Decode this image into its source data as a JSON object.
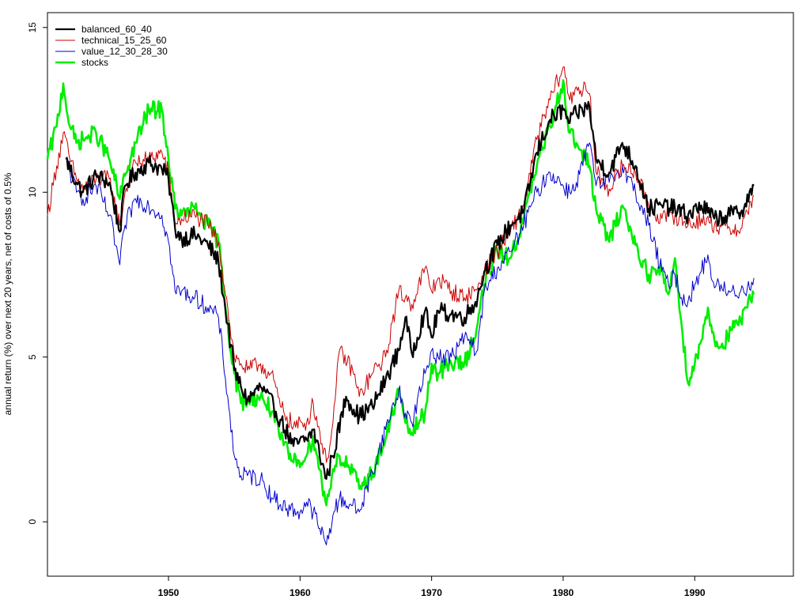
{
  "chart_data": {
    "type": "line",
    "title": "",
    "xlabel": "",
    "ylabel": "annual return (%) over next 20 years, net of costs of 0.5%",
    "xlim": [
      1940.8,
      1997.5
    ],
    "ylim": [
      -1.65,
      15.45
    ],
    "x_ticks": [
      1950,
      1960,
      1970,
      1980,
      1990
    ],
    "y_ticks": [
      0,
      5,
      10,
      15
    ],
    "grid": false,
    "legend_position": "top-left",
    "series": [
      {
        "name": "balanced_60_40",
        "color": "#000000",
        "x": [
          1942.2,
          1943.0,
          1943.5,
          1944.5,
          1945.5,
          1946.3,
          1946.7,
          1947.5,
          1948.5,
          1949.5,
          1950.0,
          1950.5,
          1951.0,
          1952.0,
          1953.0,
          1953.8,
          1954.5,
          1955.0,
          1955.5,
          1956.0,
          1957.0,
          1958.0,
          1958.5,
          1959.5,
          1960.5,
          1961.0,
          1962.0,
          1962.5,
          1963.5,
          1964.5,
          1965.5,
          1966.5,
          1967.5,
          1968.0,
          1968.5,
          1969.5,
          1970.0,
          1970.5,
          1971.5,
          1972.5,
          1973.5,
          1974.0,
          1975.0,
          1976.0,
          1977.0,
          1978.0,
          1979.0,
          1980.0,
          1980.5,
          1981.0,
          1982.0,
          1982.5,
          1983.5,
          1984.5,
          1985.5,
          1986.5,
          1987.5,
          1988.5,
          1989.5,
          1990.5,
          1991.5,
          1992.5,
          1993.5,
          1994.5
        ],
        "y": [
          11.0,
          10.3,
          10.0,
          10.5,
          10.3,
          8.8,
          10.2,
          10.6,
          10.9,
          10.7,
          10.4,
          8.9,
          8.6,
          8.7,
          8.4,
          7.9,
          6.0,
          4.6,
          4.1,
          3.7,
          4.1,
          3.5,
          3.1,
          2.3,
          2.5,
          2.8,
          1.3,
          2.0,
          3.8,
          3.2,
          3.5,
          4.3,
          5.2,
          6.2,
          5.1,
          6.4,
          5.6,
          6.4,
          6.3,
          6.2,
          6.8,
          7.6,
          8.4,
          9.0,
          9.4,
          11.2,
          12.2,
          12.5,
          12.1,
          12.4,
          12.6,
          11.0,
          10.6,
          11.5,
          10.8,
          9.5,
          9.6,
          9.5,
          9.3,
          9.6,
          9.2,
          9.3,
          9.4,
          10.2
        ]
      },
      {
        "name": "technical_15_25_60",
        "color": "#cc0000",
        "x": [
          1940.8,
          1941.5,
          1942.0,
          1942.5,
          1943.0,
          1943.5,
          1944.5,
          1945.5,
          1946.3,
          1946.7,
          1947.5,
          1948.5,
          1949.5,
          1950.0,
          1950.5,
          1951.0,
          1952.0,
          1953.0,
          1953.8,
          1954.5,
          1955.0,
          1955.5,
          1956.0,
          1957.0,
          1958.0,
          1958.5,
          1959.5,
          1960.5,
          1961.0,
          1962.0,
          1962.5,
          1963.0,
          1964.0,
          1964.5,
          1965.5,
          1966.5,
          1967.5,
          1968.0,
          1968.5,
          1969.5,
          1970.0,
          1970.5,
          1971.5,
          1972.5,
          1973.5,
          1974.0,
          1975.0,
          1976.0,
          1977.0,
          1978.0,
          1979.0,
          1980.0,
          1980.5,
          1981.0,
          1982.0,
          1982.5,
          1983.5,
          1984.5,
          1985.5,
          1986.5,
          1987.5,
          1988.5,
          1989.5,
          1990.5,
          1991.5,
          1992.5,
          1993.5,
          1994.5
        ],
        "y": [
          9.3,
          10.8,
          11.8,
          11.0,
          10.4,
          10.1,
          10.4,
          10.4,
          9.0,
          10.0,
          10.9,
          11.0,
          11.2,
          10.6,
          9.0,
          9.2,
          9.3,
          9.0,
          8.5,
          6.5,
          5.0,
          4.8,
          4.6,
          4.8,
          4.3,
          3.5,
          2.9,
          3.0,
          3.6,
          1.8,
          3.0,
          5.2,
          4.6,
          3.8,
          4.5,
          5.0,
          7.0,
          6.8,
          6.6,
          7.7,
          7.0,
          7.4,
          7.0,
          6.8,
          7.1,
          7.6,
          8.2,
          8.8,
          9.6,
          11.6,
          12.8,
          13.8,
          12.8,
          13.2,
          13.0,
          10.6,
          10.1,
          10.8,
          10.6,
          9.6,
          9.2,
          9.3,
          9.0,
          9.2,
          9.0,
          8.9,
          8.9,
          9.9
        ]
      },
      {
        "name": "value_12_30_28_30",
        "color": "#0000cc",
        "x": [
          1942.2,
          1943.0,
          1943.5,
          1944.5,
          1945.5,
          1946.3,
          1946.7,
          1947.5,
          1948.5,
          1949.5,
          1950.0,
          1950.5,
          1951.0,
          1952.0,
          1953.0,
          1953.8,
          1954.5,
          1955.0,
          1955.5,
          1956.0,
          1957.0,
          1958.0,
          1959.0,
          1960.0,
          1960.5,
          1961.0,
          1961.5,
          1962.0,
          1962.5,
          1963.0,
          1964.0,
          1964.5,
          1965.5,
          1966.5,
          1967.5,
          1968.0,
          1968.5,
          1969.5,
          1970.0,
          1970.5,
          1971.5,
          1972.5,
          1973.5,
          1974.0,
          1975.0,
          1976.0,
          1977.0,
          1978.0,
          1979.0,
          1980.0,
          1980.5,
          1981.0,
          1982.0,
          1982.5,
          1983.5,
          1984.5,
          1985.5,
          1986.5,
          1987.5,
          1988.0,
          1988.5,
          1989.0,
          1989.5,
          1990.0,
          1990.5,
          1991.0,
          1991.5,
          1992.0,
          1992.5,
          1993.0,
          1993.5,
          1994.0,
          1994.5
        ],
        "y": [
          11.0,
          10.0,
          9.8,
          10.2,
          9.3,
          7.8,
          9.0,
          9.8,
          9.6,
          9.3,
          8.5,
          7.0,
          7.0,
          6.8,
          6.5,
          6.2,
          3.8,
          2.0,
          1.4,
          1.4,
          1.3,
          0.7,
          0.4,
          0.3,
          0.6,
          0.3,
          -0.2,
          -0.7,
          0.2,
          0.7,
          0.5,
          0.3,
          1.5,
          2.8,
          4.0,
          3.3,
          3.0,
          4.5,
          5.2,
          5.0,
          5.0,
          5.6,
          5.2,
          7.0,
          7.7,
          8.2,
          9.0,
          10.0,
          10.6,
          10.2,
          10.0,
          10.3,
          11.5,
          10.2,
          10.3,
          10.8,
          10.0,
          9.0,
          7.6,
          7.2,
          7.5,
          6.8,
          6.7,
          7.2,
          7.6,
          8.1,
          7.1,
          7.2,
          6.9,
          7.0,
          7.0,
          7.1,
          7.4
        ]
      },
      {
        "name": "stocks",
        "color": "#00ee00",
        "x": [
          1940.8,
          1941.5,
          1942.0,
          1942.5,
          1943.0,
          1943.5,
          1944.5,
          1945.5,
          1946.3,
          1946.7,
          1947.5,
          1948.5,
          1949.5,
          1950.0,
          1950.5,
          1951.0,
          1952.0,
          1953.0,
          1953.8,
          1954.5,
          1955.0,
          1955.5,
          1956.0,
          1957.0,
          1958.0,
          1958.5,
          1959.5,
          1960.5,
          1961.0,
          1962.0,
          1962.5,
          1963.0,
          1964.0,
          1964.5,
          1965.5,
          1966.5,
          1967.5,
          1968.0,
          1968.5,
          1969.5,
          1970.0,
          1970.5,
          1971.5,
          1972.5,
          1973.5,
          1974.0,
          1975.0,
          1976.0,
          1977.0,
          1978.0,
          1979.0,
          1980.0,
          1980.5,
          1981.0,
          1982.0,
          1982.5,
          1983.5,
          1984.5,
          1985.5,
          1986.5,
          1987.5,
          1988.0,
          1988.5,
          1989.0,
          1989.5,
          1990.0,
          1990.5,
          1991.0,
          1991.5,
          1992.0,
          1992.5,
          1993.0,
          1993.5,
          1994.0,
          1994.5
        ],
        "y": [
          11.0,
          12.0,
          13.3,
          12.0,
          11.5,
          11.6,
          11.8,
          11.0,
          9.8,
          10.5,
          11.5,
          12.5,
          12.5,
          11.0,
          9.5,
          9.3,
          9.5,
          9.0,
          8.5,
          6.0,
          4.5,
          3.6,
          3.7,
          3.8,
          3.3,
          2.5,
          1.8,
          2.0,
          2.6,
          0.5,
          1.6,
          2.0,
          1.5,
          1.0,
          1.5,
          2.5,
          4.0,
          3.0,
          2.7,
          3.3,
          4.8,
          4.5,
          4.8,
          4.8,
          6.0,
          7.2,
          8.2,
          8.0,
          9.2,
          10.8,
          12.0,
          13.4,
          11.8,
          11.5,
          10.8,
          9.5,
          8.5,
          9.6,
          8.4,
          7.5,
          7.6,
          6.9,
          8.0,
          6.0,
          4.2,
          4.8,
          5.5,
          6.5,
          5.5,
          5.3,
          5.6,
          5.9,
          6.1,
          6.5,
          6.9
        ]
      }
    ]
  }
}
